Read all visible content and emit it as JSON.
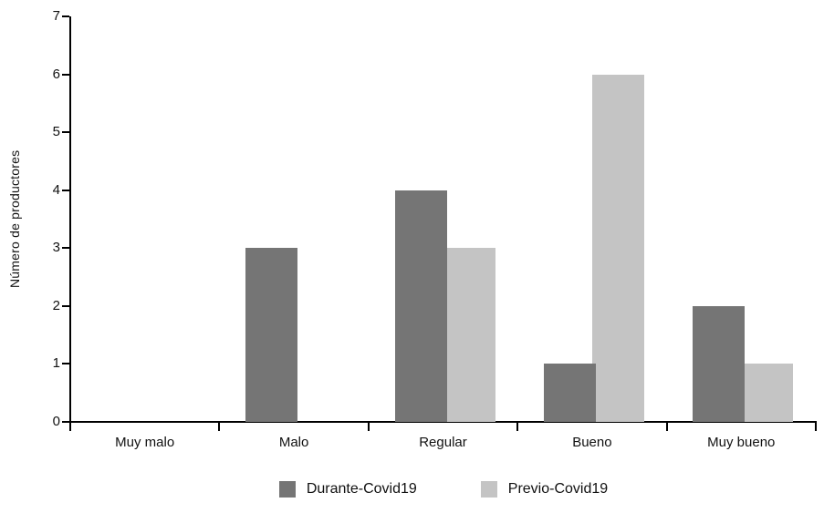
{
  "chart_data": {
    "type": "bar",
    "title": "",
    "xlabel": "",
    "ylabel": "Número de productores",
    "categories": [
      "Muy malo",
      "Malo",
      "Regular",
      "Bueno",
      "Muy bueno"
    ],
    "series": [
      {
        "name": "Durante-Covid19",
        "color": "#757575",
        "values": [
          0,
          3,
          4,
          1,
          2
        ]
      },
      {
        "name": "Previo-Covid19",
        "color": "#c4c4c4",
        "values": [
          0,
          0,
          3,
          6,
          1
        ]
      }
    ],
    "ylim": [
      0,
      7
    ],
    "yticks": [
      "0",
      "1",
      "2",
      "3",
      "4",
      "5",
      "6",
      "7"
    ],
    "grid": "off",
    "legend_position": "bottom-center",
    "axis_color": "#000000",
    "text_color": "#111111",
    "background": "#ffffff"
  }
}
